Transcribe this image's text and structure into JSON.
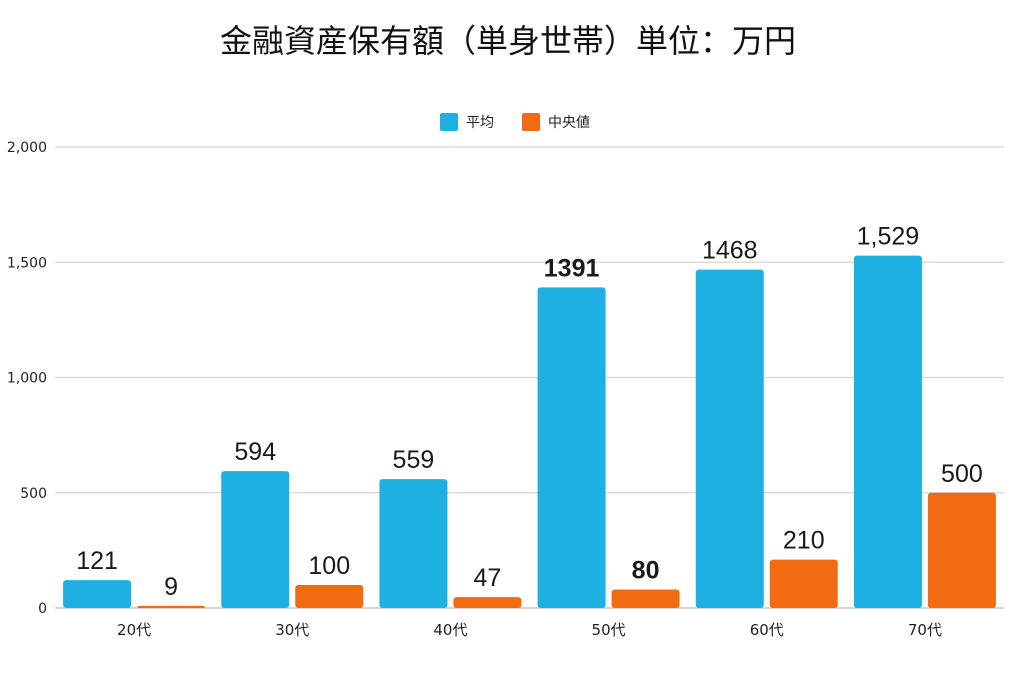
{
  "title": "金融資産保有額（単身世帯）単位：万円",
  "chart_data": {
    "type": "bar",
    "title": "金融資産保有額（単身世帯）単位：万円",
    "categories": [
      "20代",
      "30代",
      "40代",
      "50代",
      "60代",
      "70代"
    ],
    "series": [
      {
        "name": "平均",
        "color": "#1fb0e3",
        "values": [
          121,
          594,
          559,
          1391,
          1468,
          1529
        ],
        "labels": [
          "121",
          "594",
          "559",
          "1391",
          "1468",
          "1,529"
        ]
      },
      {
        "name": "中央値",
        "color": "#f26a12",
        "values": [
          9,
          100,
          47,
          80,
          210,
          500
        ],
        "labels": [
          "9",
          "100",
          "47",
          "80",
          "210",
          "500"
        ]
      }
    ],
    "bold_labels": [
      "1391",
      "80"
    ],
    "ylim": [
      0,
      2000
    ],
    "yticks": [
      0,
      500,
      1000,
      1500,
      2000
    ],
    "ytick_labels": [
      "0",
      "500",
      "1,000",
      "1,500",
      "2,000"
    ],
    "xlabel": "",
    "ylabel": "",
    "grid": true,
    "legend_position": "top-center"
  }
}
